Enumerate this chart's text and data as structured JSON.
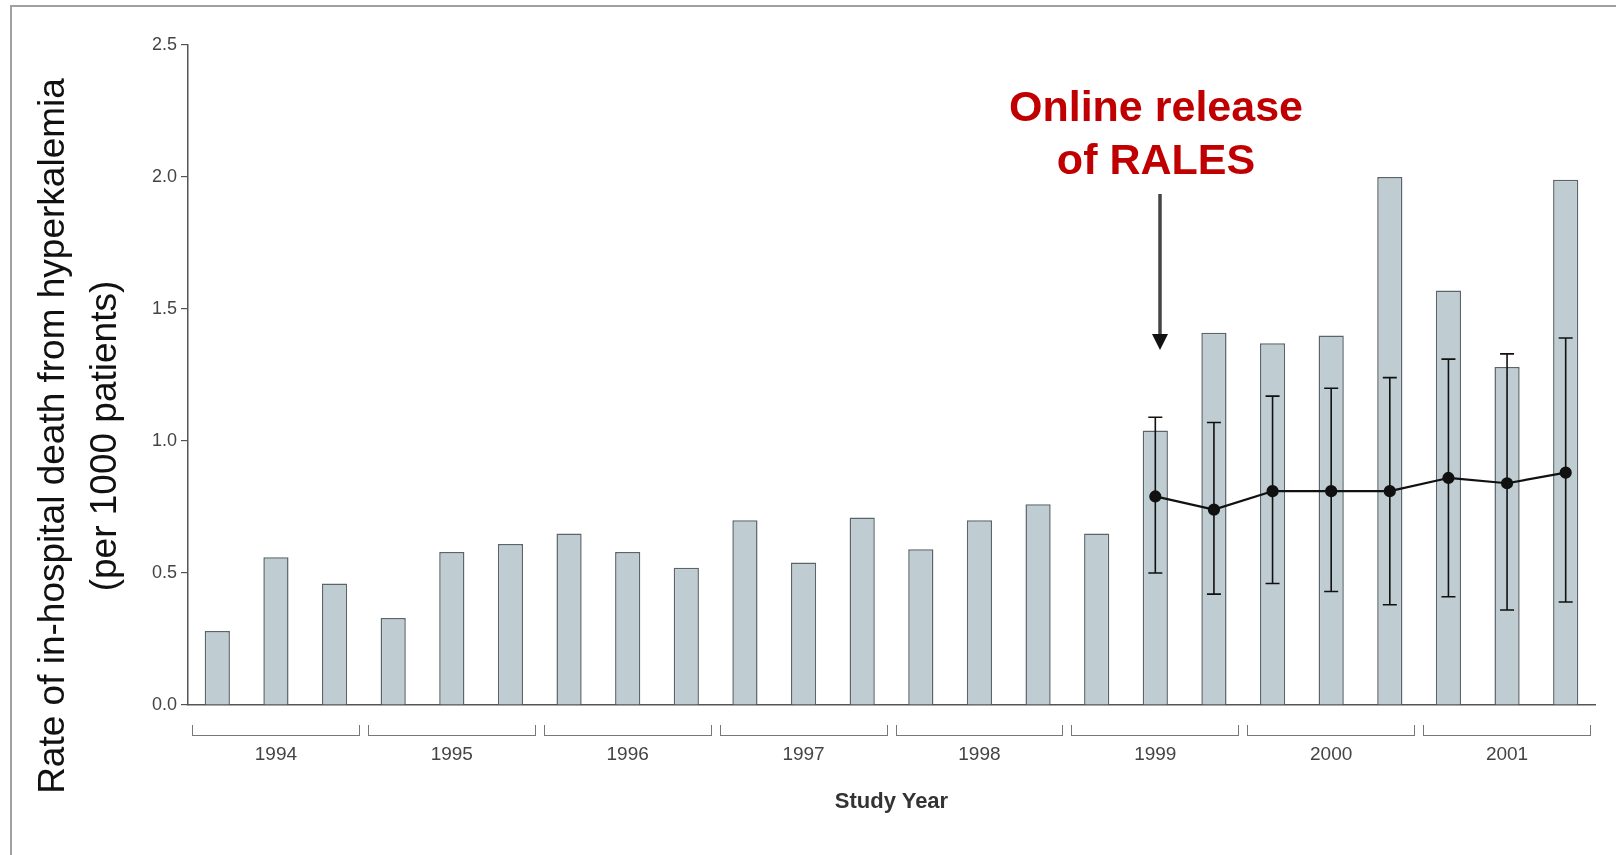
{
  "chart_data": {
    "type": "bar",
    "xlabel": "Study Year",
    "ylabel": "Rate of in-hospital death from hyperkalemia (per 1000 patients)",
    "categories": [
      null,
      "1994",
      null,
      null,
      "1995",
      null,
      null,
      "1996",
      null,
      null,
      "1997",
      null,
      null,
      "1998",
      null,
      null,
      "1999",
      null,
      null,
      "2000",
      null,
      null,
      "2001",
      null
    ],
    "series": [
      {
        "color": "#bfcdd3",
        "values": [
          0.28,
          0.56,
          0.46,
          0.33,
          0.58,
          0.61,
          0.65,
          0.58,
          0.52,
          0.7,
          0.54,
          0.71,
          0.59,
          0.7,
          0.76,
          0.65,
          1.04,
          1.41,
          1.37,
          1.4,
          2.0,
          1.57,
          1.28,
          1.99
        ]
      },
      {
        "type": "line",
        "color": "#111111",
        "values": [
          null,
          null,
          null,
          null,
          null,
          null,
          null,
          null,
          null,
          null,
          null,
          null,
          null,
          null,
          null,
          null,
          0.79,
          0.74,
          0.81,
          0.81,
          0.81,
          0.86,
          0.84,
          0.88
        ],
        "errors": [
          null,
          null,
          null,
          null,
          null,
          null,
          null,
          null,
          null,
          null,
          null,
          null,
          null,
          null,
          null,
          null,
          [
            0.5,
            1.09
          ],
          [
            0.42,
            1.07
          ],
          [
            0.46,
            1.17
          ],
          [
            0.43,
            1.2
          ],
          [
            0.38,
            1.24
          ],
          [
            0.41,
            1.31
          ],
          [
            0.36,
            1.33
          ],
          [
            0.39,
            1.39
          ]
        ]
      }
    ],
    "ylim": [
      0,
      2.5
    ],
    "yticks": [
      {
        "value": 0,
        "label": "0.0"
      },
      0.5,
      {
        "value": 1,
        "label": "1.0"
      },
      1.5,
      {
        "value": 2,
        "label": "2.0"
      },
      2.5
    ],
    "annotations": [
      "Online release of RALES"
    ],
    "marker": "circle",
    "grid": false,
    "legend": false
  }
}
